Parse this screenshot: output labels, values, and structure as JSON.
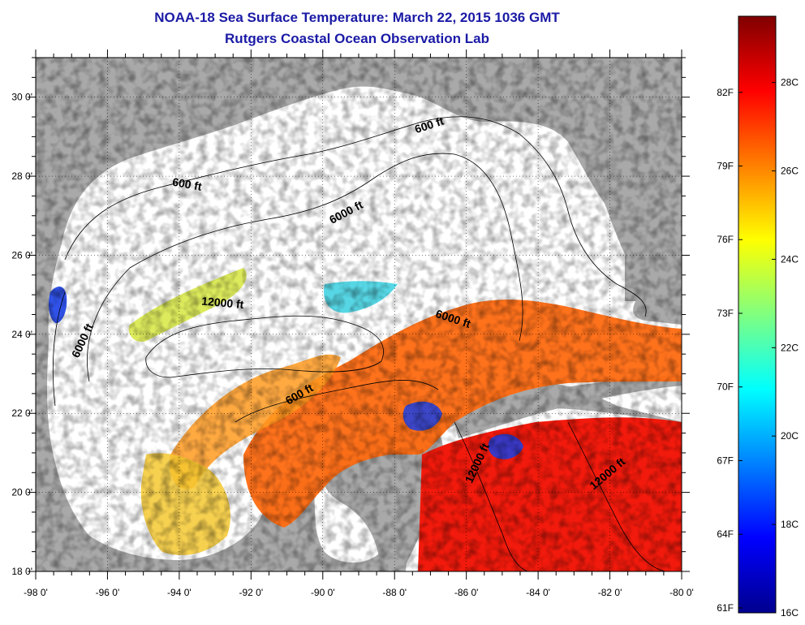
{
  "title": "NOAA-18 Sea Surface Temperature:  March 22, 2015 1036 GMT",
  "subtitle": "Rutgers Coastal Ocean Observation Lab",
  "map": {
    "lon_range": [
      -98,
      -80
    ],
    "lat_range": [
      18,
      31
    ],
    "x_ticks": [
      "-98 0'",
      "-96 0'",
      "-94 0'",
      "-92 0'",
      "-90 0'",
      "-88 0'",
      "-86 0'",
      "-84 0'",
      "-82 0'",
      "-80 0'"
    ],
    "y_ticks": [
      "18 0'",
      "20 0'",
      "22 0'",
      "24 0'",
      "26 0'",
      "28 0'",
      "30 0'"
    ],
    "land_color": "#a9a9a9",
    "no_data_color": "#ffffff",
    "contour_labels": [
      {
        "text": "600 ft",
        "lon": -93.8,
        "lat": 27.7,
        "angle": 10
      },
      {
        "text": "600 ft",
        "lon": -87.0,
        "lat": 29.2,
        "angle": -18
      },
      {
        "text": "6000 ft",
        "lon": -89.3,
        "lat": 27.0,
        "angle": -28
      },
      {
        "text": "12000 ft",
        "lon": -92.8,
        "lat": 24.7,
        "angle": 5
      },
      {
        "text": "6000 ft",
        "lon": -96.6,
        "lat": 23.8,
        "angle": -65
      },
      {
        "text": "6000 ft",
        "lon": -86.4,
        "lat": 24.3,
        "angle": 18
      },
      {
        "text": "600 ft",
        "lon": -90.6,
        "lat": 22.4,
        "angle": -30
      },
      {
        "text": "12000 ft",
        "lon": -85.6,
        "lat": 20.7,
        "angle": -65
      },
      {
        "text": "12000 ft",
        "lon": -82.0,
        "lat": 20.4,
        "angle": -40
      }
    ]
  },
  "colorbar": {
    "min_c": 16,
    "max_c": 29.5,
    "celsius_labels": [
      {
        "text": "28C",
        "value_c": 28
      },
      {
        "text": "26C",
        "value_c": 26
      },
      {
        "text": "24C",
        "value_c": 24
      },
      {
        "text": "22C",
        "value_c": 22
      },
      {
        "text": "20C",
        "value_c": 20
      },
      {
        "text": "18C",
        "value_c": 18
      },
      {
        "text": "16C",
        "value_c": 16
      }
    ],
    "fahrenheit_labels": [
      {
        "text": "82F",
        "value_f": 82
      },
      {
        "text": "79F",
        "value_f": 79
      },
      {
        "text": "76F",
        "value_f": 76
      },
      {
        "text": "73F",
        "value_f": 73
      },
      {
        "text": "70F",
        "value_f": 70
      },
      {
        "text": "67F",
        "value_f": 67
      },
      {
        "text": "64F",
        "value_f": 64
      },
      {
        "text": "61F",
        "value_f": 61
      }
    ],
    "colors": [
      "#00008f",
      "#0000ff",
      "#0080ff",
      "#00ffff",
      "#80ff80",
      "#ffff00",
      "#ff8000",
      "#ff0000",
      "#800000"
    ]
  }
}
